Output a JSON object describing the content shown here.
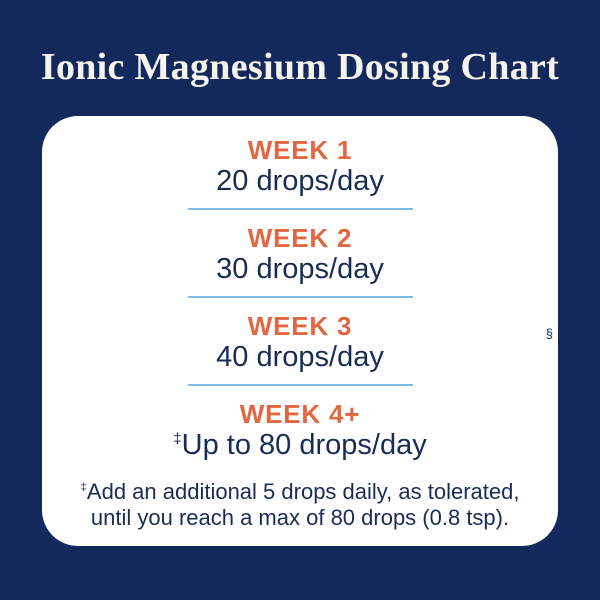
{
  "header": {
    "title": "Ionic Magnesium Dosing Chart"
  },
  "card": {
    "rows": [
      {
        "label": "WEEK 1",
        "value": "20 drops/day"
      },
      {
        "label": "WEEK 2",
        "value": "30 drops/day"
      },
      {
        "label": "WEEK 3",
        "value": "40 drops/day"
      },
      {
        "label": "WEEK 4+",
        "marker": "‡",
        "value": "Up to 80 drops/day"
      }
    ],
    "footnote": {
      "marker": "‡",
      "line1": "Add an additional 5 drops daily, as tolerated,",
      "line2": "until you reach a max of 80 drops (0.8 tsp)."
    },
    "side_mark": "§"
  },
  "colors": {
    "background_navy": "#14295B",
    "card_white": "#FFFFFF",
    "accent_orange": "#E2663F",
    "text_navy": "#1A2B55",
    "divider_blue": "#7EBEE2",
    "title_cream": "#F6F3ED"
  },
  "chart_data": {
    "type": "table",
    "title": "Ionic Magnesium Dosing Chart",
    "categories": [
      "WEEK 1",
      "WEEK 2",
      "WEEK 3",
      "WEEK 4+"
    ],
    "values": [
      "20 drops/day",
      "30 drops/day",
      "40 drops/day",
      "‡Up to 80 drops/day"
    ],
    "drops_per_day": [
      20,
      30,
      40,
      80
    ],
    "footnote": "‡Add an additional 5 drops daily, as tolerated, until you reach a max of 80 drops (0.8 tsp).",
    "layout": "vertical list of week rows separated by light-blue divider lines inside a white rounded card on a navy background"
  }
}
